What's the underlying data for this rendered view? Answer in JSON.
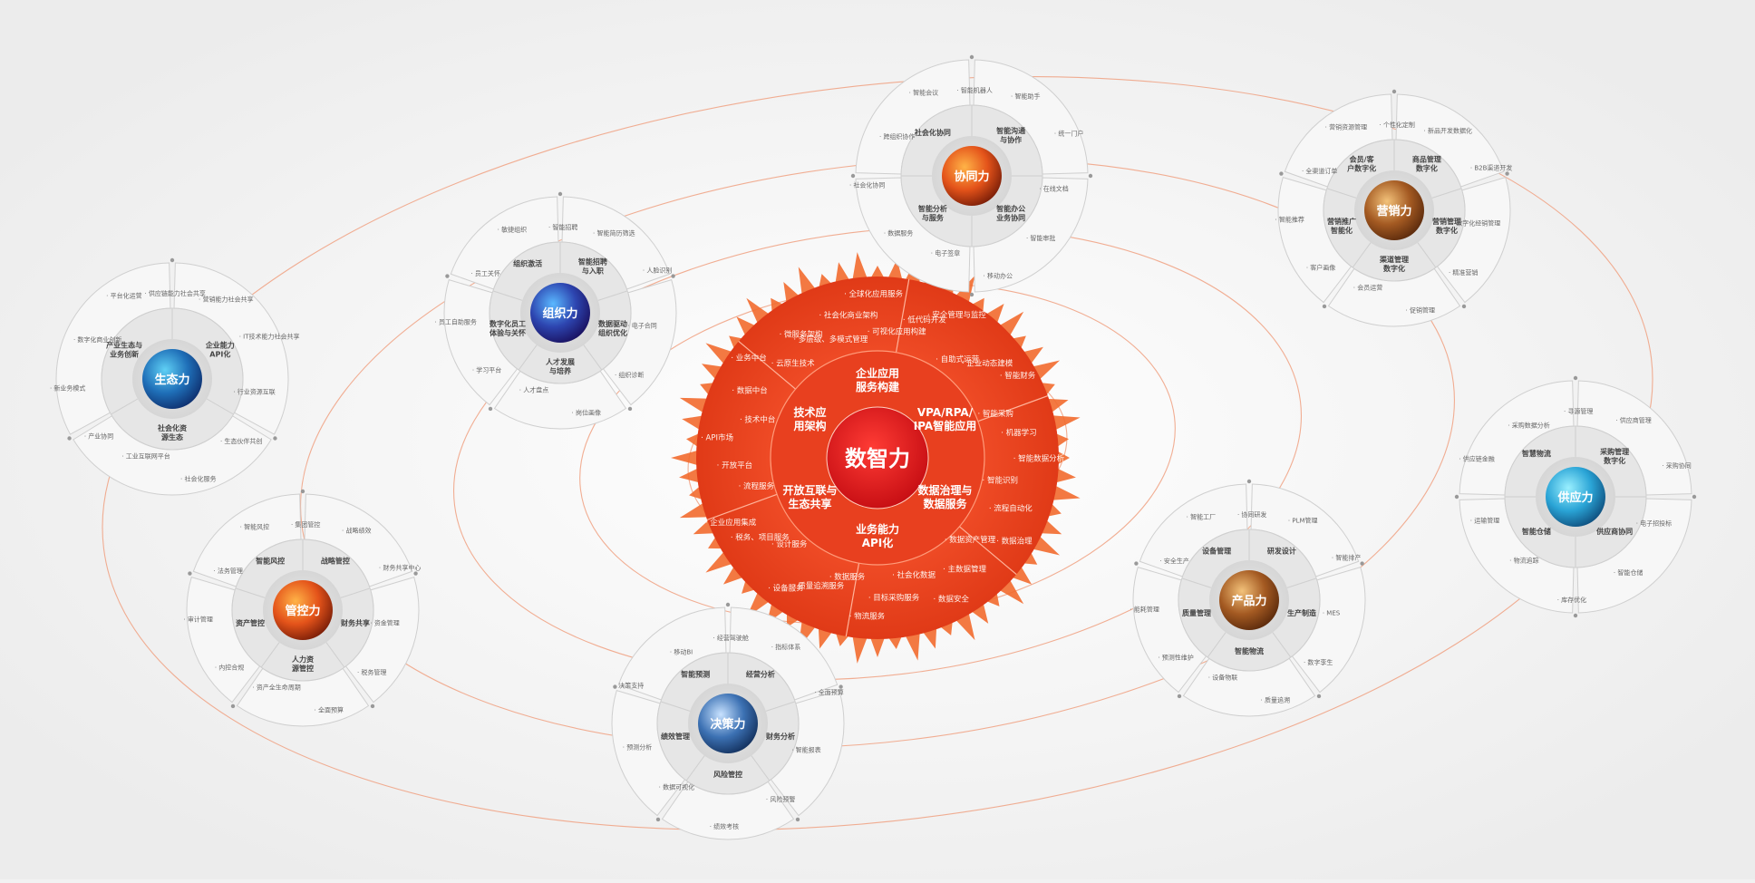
{
  "center": {
    "name": "数智力",
    "inner_ring": [
      "企业应用服务构建",
      "VPA/RPA/IPA智能应用",
      "数据治理与数据服务",
      "业务能力API化",
      "开放互联与生态共享",
      "技术应用架构"
    ],
    "outer_items": [
      "· 多层级、多模式管理",
      "· 社会化商业架构",
      "· 全球化应用服务",
      "· 可视化应用构建",
      "· 低代码开发",
      "· 安全管理与监控",
      "· 自助式运营",
      "· 企业动态建模",
      "· 智能财务",
      "· 智能采购",
      "· 机器学习",
      "· 智能数据分析",
      "· 智能识别",
      "· 流程自动化",
      "· 数据治理",
      "· 数据资产管理",
      "· 主数据管理",
      "· 数据安全",
      "· 社会化数据",
      "· 目标采购服务",
      "· 物流服务",
      "· 数据服务",
      "· 质量追溯服务",
      "· 设备服务",
      "· 设计服务",
      "· 税务、项目服务",
      "· 企业应用集成",
      "· 流程服务",
      "· 开放平台",
      "· API市场",
      "· 技术中台",
      "· 数据中台",
      "· 业务中台",
      "· 云原生技术",
      "· 微服务架构"
    ]
  },
  "planets": [
    {
      "name": "生态力",
      "sectors": [
        "企业能力API化",
        "社会化资源生态",
        "产业生态与业务创新"
      ],
      "items": [
        "· 供应链能力社会共享",
        "· 营销能力社会共享",
        "· IT技术能力社会共享",
        "· 行业资源互联",
        "· 生态伙伴共创",
        "· 社会化服务",
        "· 工业互联网平台",
        "· 产业协同",
        "· 新业务模式",
        "· 数字化商业创新",
        "· 平台化运营"
      ]
    },
    {
      "name": "组织力",
      "sectors": [
        "智能招聘与入职",
        "数据驱动组织优化",
        "人才发展与培养",
        "数字化员工体验与关怀",
        "组织激活"
      ],
      "items": [
        "· 智能招聘",
        "· 智能简历筛选",
        "· 人脸识别",
        "· 电子合同",
        "· 组织诊断",
        "· 岗位画像",
        "· 人才盘点",
        "· 学习平台",
        "· 员工自助服务",
        "· 员工关怀",
        "· 敏捷组织"
      ]
    },
    {
      "name": "协同力",
      "sectors": [
        "智能沟通与协作",
        "智能办公业务协同",
        "智能分析与服务",
        "社会化协同"
      ],
      "items": [
        "· 智能机器人",
        "· 智能助手",
        "· 统一门户",
        "· 在线文档",
        "· 智能审批",
        "· 移动办公",
        "· 电子签章",
        "· 数据服务",
        "· 社会化协同",
        "· 跨组织协作",
        "· 智能会议"
      ]
    },
    {
      "name": "营销力",
      "sectors": [
        "商品管理数字化",
        "营销管理数字化",
        "渠道管理数字化",
        "营销推广智能化",
        "会员/客户数字化"
      ],
      "items": [
        "· 个性化定制",
        "· 新品开发数据化",
        "· B2B渠道开发",
        "· 数字化经销管理",
        "· 精准营销",
        "· 促销管理",
        "· 会员运营",
        "· 客户画像",
        "· 智能推荐",
        "· 全渠道订单",
        "· 营销资源管理"
      ]
    },
    {
      "name": "供应力",
      "sectors": [
        "采购管理数字化",
        "供应商协同",
        "智能仓储",
        "智慧物流"
      ],
      "items": [
        "· 寻源管理",
        "· 供应商管理",
        "· 采购协同",
        "· 电子招投标",
        "· 智能仓储",
        "· 库存优化",
        "· 物流追踪",
        "· 运输管理",
        "· 供应链金融",
        "· 采购数据分析"
      ]
    },
    {
      "name": "产品力",
      "sectors": [
        "研发设计",
        "生产制造",
        "智能物流",
        "质量管理",
        "设备管理"
      ],
      "items": [
        "· 协同研发",
        "· PLM管理",
        "· 智能排产",
        "· MES",
        "· 数字孪生",
        "· 质量追溯",
        "· 设备物联",
        "· 预测性维护",
        "· 能耗管理",
        "· 安全生产",
        "· 智能工厂"
      ]
    },
    {
      "name": "决策力",
      "sectors": [
        "经营分析",
        "财务分析",
        "风险管控",
        "绩效管理",
        "智能预测"
      ],
      "items": [
        "· 经营驾驶舱",
        "· 指标体系",
        "· 全面预算",
        "· 智能报表",
        "· 风险预警",
        "· 绩效考核",
        "· 数据可视化",
        "· 预测分析",
        "· 决策支持",
        "· 移动BI"
      ]
    },
    {
      "name": "管控力",
      "sectors": [
        "战略管控",
        "财务共享",
        "人力资源管控",
        "资产管控",
        "智能风控"
      ],
      "items": [
        "· 集团管控",
        "· 战略绩效",
        "· 财务共享中心",
        "· 资金管理",
        "· 税务管理",
        "· 全面预算",
        "· 资产全生命周期",
        "· 内控合规",
        "· 审计管理",
        "· 法务管理",
        "· 智能风控"
      ]
    }
  ]
}
